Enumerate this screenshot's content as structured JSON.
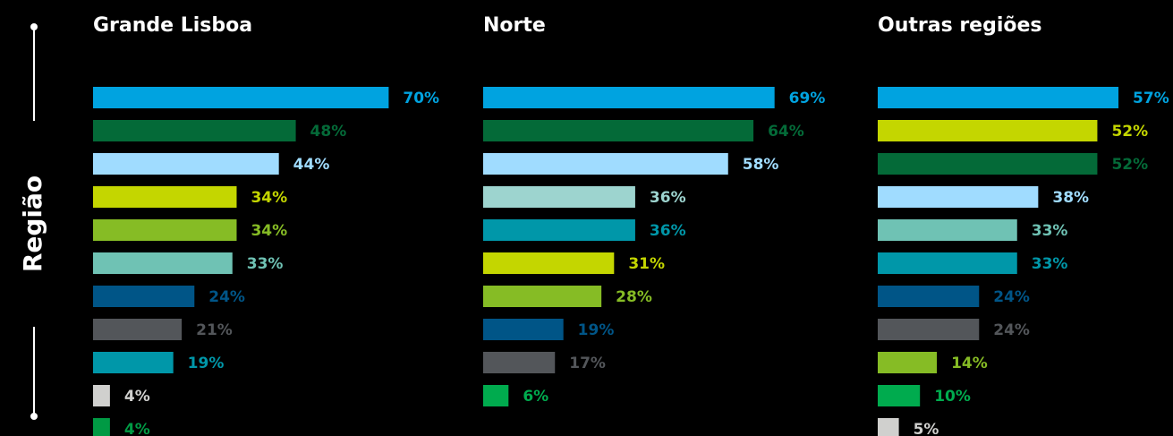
{
  "y_label": "Região",
  "chart_data": [
    {
      "type": "bar",
      "orientation": "horizontal",
      "title": "Grande Lisboa",
      "xlim": [
        0,
        100
      ],
      "values": [
        70,
        48,
        44,
        34,
        34,
        33,
        24,
        21,
        19,
        4,
        4
      ],
      "value_labels": [
        "70%",
        "48%",
        "44%",
        "34%",
        "34%",
        "33%",
        "24%",
        "21%",
        "19%",
        "4%",
        "4%"
      ],
      "colors": [
        "#00a3e0",
        "#046a38",
        "#a0dcff",
        "#c4d600",
        "#86bc25",
        "#6fc2b4",
        "#005587",
        "#53565a",
        "#0097a9",
        "#d0d0ce",
        "#009a44"
      ]
    },
    {
      "type": "bar",
      "orientation": "horizontal",
      "title": "Norte",
      "xlim": [
        0,
        100
      ],
      "values": [
        69,
        64,
        58,
        36,
        36,
        31,
        28,
        19,
        17,
        6
      ],
      "value_labels": [
        "69%",
        "64%",
        "58%",
        "36%",
        "36%",
        "31%",
        "28%",
        "19%",
        "17%",
        "6%"
      ],
      "colors": [
        "#00a3e0",
        "#046a38",
        "#a0dcff",
        "#9dd4cf",
        "#0097a9",
        "#c4d600",
        "#86bc25",
        "#005587",
        "#53565a",
        "#00ab4e"
      ]
    },
    {
      "type": "bar",
      "orientation": "horizontal",
      "title": "Outras regiões",
      "xlim": [
        0,
        100
      ],
      "values": [
        57,
        52,
        52,
        38,
        33,
        33,
        24,
        24,
        14,
        10,
        5
      ],
      "value_labels": [
        "57%",
        "52%",
        "52%",
        "38%",
        "33%",
        "33%",
        "24%",
        "24%",
        "14%",
        "10%",
        "5%"
      ],
      "colors": [
        "#00a3e0",
        "#c4d600",
        "#046a38",
        "#a0dcff",
        "#6fc2b4",
        "#0097a9",
        "#005587",
        "#53565a",
        "#86bc25",
        "#00ab4e",
        "#d0d0ce"
      ]
    }
  ]
}
